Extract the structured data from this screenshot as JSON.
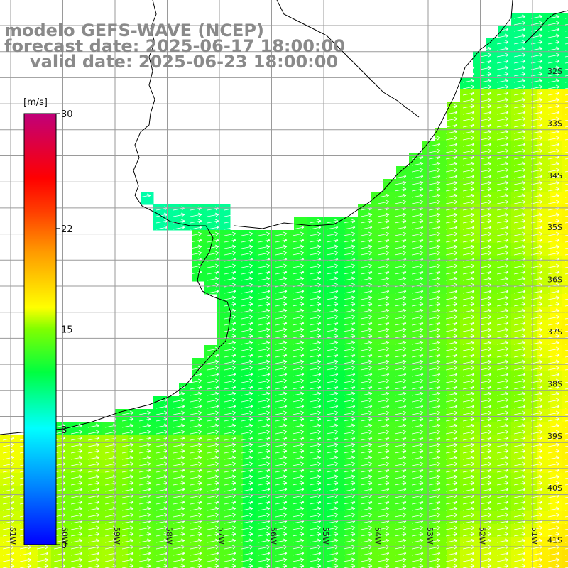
{
  "title": {
    "line1": "modelo GEFS-WAVE (NCEP)",
    "line2": "forecast date: 2025-06-17 18:00:00",
    "line3": "valid date: 2025-06-23 18:00:00",
    "color": "#8a8a8a"
  },
  "colorbar": {
    "unit": "[m/s]",
    "ticks": [
      {
        "value": 30,
        "label": "30"
      },
      {
        "value": 22,
        "label": "22"
      },
      {
        "value": 15,
        "label": "15"
      },
      {
        "value": 8,
        "label": "8"
      },
      {
        "value": 0,
        "label": "0"
      }
    ],
    "range": [
      0,
      30
    ],
    "colormap": "rainbow (blue-cyan-green-yellow-red-magenta)"
  },
  "lat_labels": [
    "32S",
    "33S",
    "34S",
    "35S",
    "36S",
    "37S",
    "38S",
    "39S",
    "40S",
    "41S"
  ],
  "lon_labels": [
    "61W",
    "60W",
    "59W",
    "58W",
    "57W",
    "56W",
    "55W",
    "54W",
    "53W",
    "52W",
    "51W"
  ],
  "map": {
    "variable": "wind speed with direction arrows",
    "region": "Rio de la Plata / southern Brazil coast",
    "prevailing_direction": "westerly winds (arrows pointing east)",
    "speed_range_shown": [
      8,
      18
    ],
    "land_color": "#ffffff",
    "grid_color": "#9a9a9a",
    "coast_color": "#000000",
    "arrow_color": "#ffffff"
  }
}
